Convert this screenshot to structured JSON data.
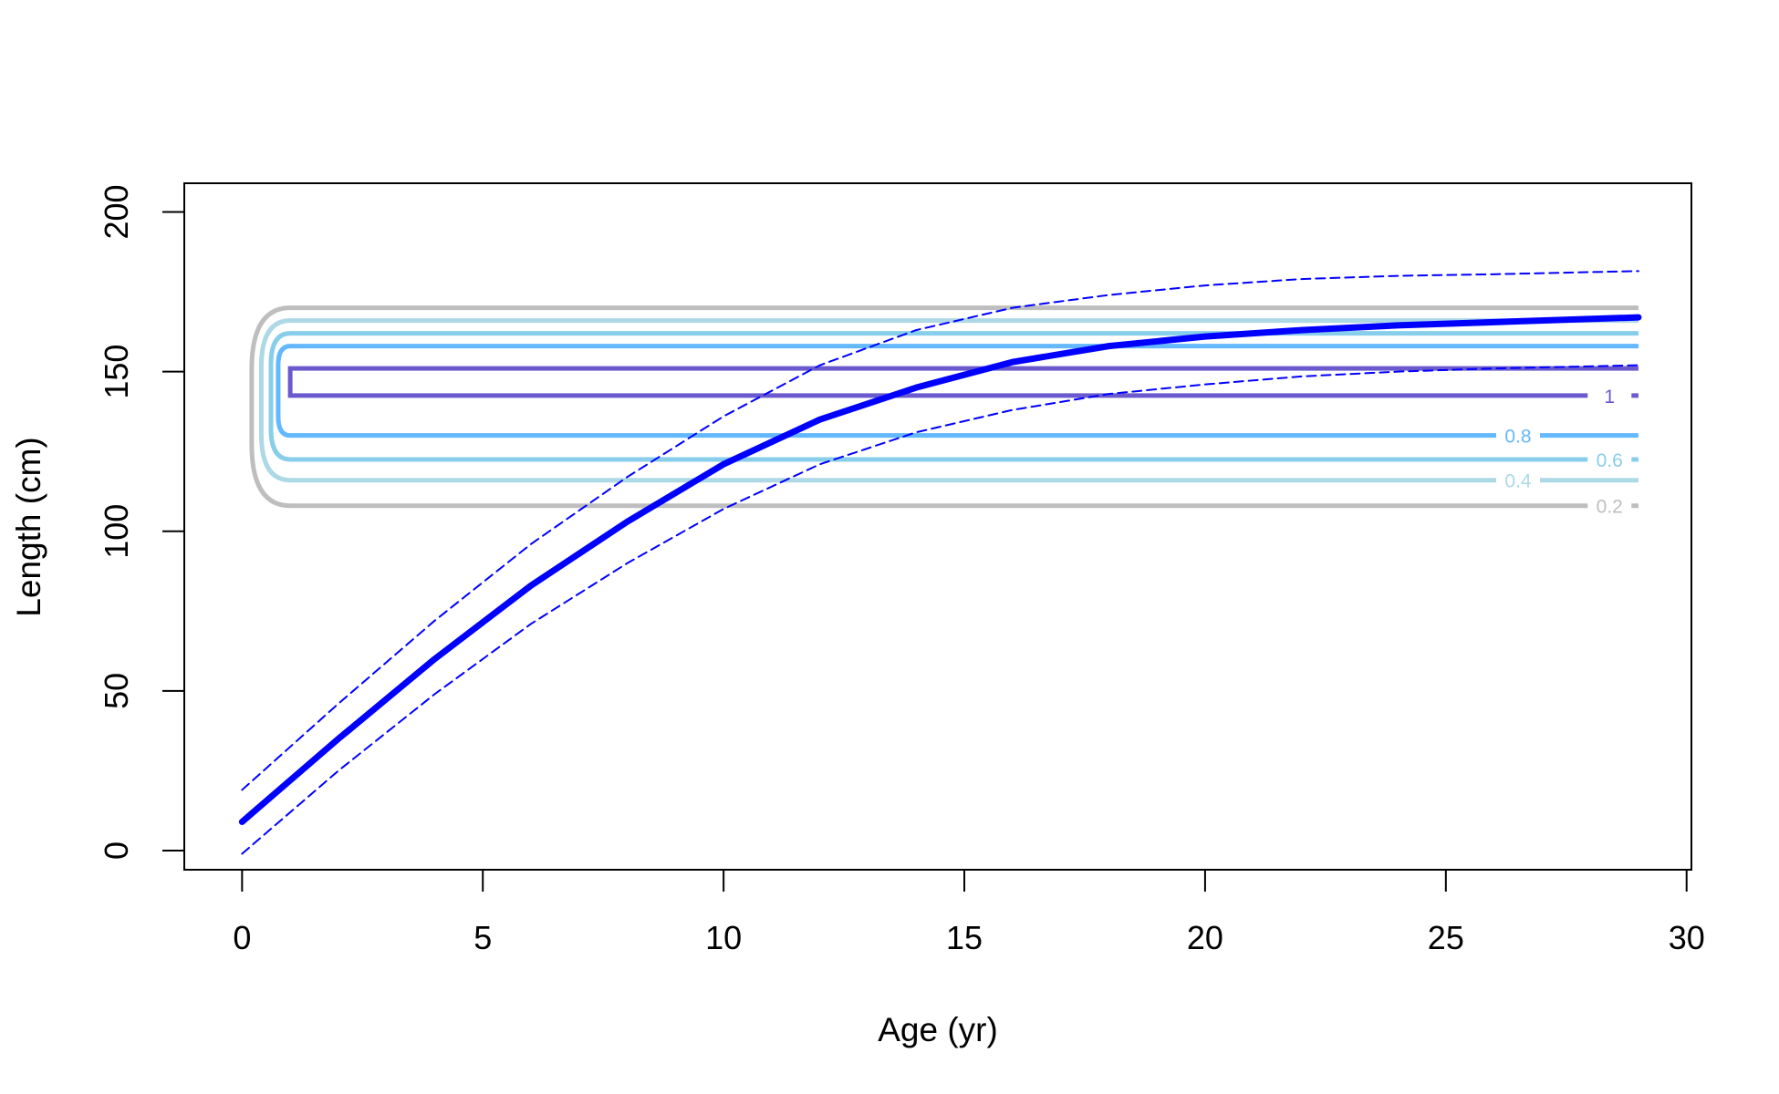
{
  "chart_data": {
    "type": "line",
    "xlabel": "Age (yr)",
    "ylabel": "Length (cm)",
    "xlim": [
      -1.2,
      30.1
    ],
    "ylim": [
      -6,
      209
    ],
    "x_ticks": [
      0,
      5,
      10,
      15,
      20,
      25,
      30
    ],
    "y_ticks": [
      0,
      50,
      100,
      150,
      200
    ],
    "grid": false,
    "legend": "none",
    "series": [
      {
        "role": "mean",
        "color": "#0000ff",
        "style": "solid-thick",
        "x": [
          0,
          2,
          4,
          6,
          8,
          10,
          12,
          14,
          16,
          18,
          20,
          22,
          24,
          26,
          29
        ],
        "y": [
          9,
          35,
          60,
          83,
          103,
          121,
          135,
          145,
          153,
          158,
          161,
          163,
          164.5,
          165.5,
          167
        ]
      },
      {
        "role": "upper",
        "color": "#0000ff",
        "style": "dashed",
        "x": [
          0,
          2,
          4,
          6,
          8,
          10,
          12,
          14,
          16,
          18,
          20,
          22,
          24,
          26,
          29
        ],
        "y": [
          19,
          46,
          72,
          96,
          117,
          136,
          152,
          163,
          170,
          174,
          177,
          179,
          180,
          180.5,
          181.5
        ]
      },
      {
        "role": "lower",
        "color": "#0000ff",
        "style": "dashed",
        "x": [
          0,
          2,
          4,
          6,
          8,
          10,
          12,
          14,
          16,
          18,
          20,
          22,
          24,
          26,
          29
        ],
        "y": [
          -1,
          25,
          49,
          71,
          90,
          107,
          121,
          131,
          138,
          143,
          146,
          148.5,
          150,
          151,
          152
        ]
      }
    ],
    "contours": [
      {
        "level": "0.2",
        "color": "#bebebe",
        "y_low": 108,
        "y_high": 170,
        "x_left": 0.2,
        "x_label": 28.4
      },
      {
        "level": "0.4",
        "color": "#add8e6",
        "y_low": 116,
        "y_high": 166,
        "x_left": 0.4,
        "x_label": 26.5
      },
      {
        "level": "0.6",
        "color": "#87ceeb",
        "y_low": 122.5,
        "y_high": 162,
        "x_left": 0.6,
        "x_label": 28.4
      },
      {
        "level": "0.8",
        "color": "#63b8ff",
        "y_low": 130,
        "y_high": 158,
        "x_left": 0.75,
        "x_label": 26.5
      },
      {
        "level": "1",
        "color": "#6a5acd",
        "y_low": 142.5,
        "y_high": 151,
        "x_left": 1.0,
        "x_label": 28.4
      }
    ],
    "contour_x_right": 29
  }
}
